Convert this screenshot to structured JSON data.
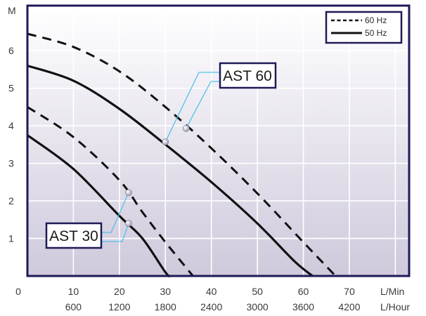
{
  "chart_data": {
    "type": "line",
    "ylabel": "M",
    "xlabel_primary": "L/Min",
    "xlabel_secondary": "L/Hour",
    "x_ticks_primary": [
      "0",
      "10",
      "20",
      "30",
      "40",
      "50",
      "60",
      "70"
    ],
    "x_ticks_secondary": [
      "600",
      "1200",
      "1800",
      "2400",
      "3000",
      "3600",
      "4200"
    ],
    "y_ticks": [
      "1",
      "2",
      "3",
      "4",
      "5",
      "6"
    ],
    "xlim": [
      0,
      83
    ],
    "ylim": [
      0,
      7.2
    ],
    "grid": true,
    "legend": {
      "placement": "top-right",
      "entries": [
        {
          "label": "60 Hz",
          "style": "dashed"
        },
        {
          "label": "50 Hz",
          "style": "solid"
        }
      ]
    },
    "series": [
      {
        "model": "AST 60",
        "freq": "60 Hz",
        "style": "dashed",
        "points": [
          [
            0,
            6.45
          ],
          [
            10,
            6.1
          ],
          [
            20,
            5.45
          ],
          [
            30,
            4.5
          ],
          [
            40,
            3.4
          ],
          [
            50,
            2.2
          ],
          [
            60,
            0.9
          ],
          [
            67,
            0
          ]
        ]
      },
      {
        "model": "AST 60",
        "freq": "50 Hz",
        "style": "solid",
        "points": [
          [
            0,
            5.6
          ],
          [
            10,
            5.2
          ],
          [
            20,
            4.45
          ],
          [
            30,
            3.5
          ],
          [
            40,
            2.5
          ],
          [
            50,
            1.4
          ],
          [
            58,
            0.4
          ],
          [
            62,
            0
          ]
        ]
      },
      {
        "model": "AST 30",
        "freq": "60 Hz",
        "style": "dashed",
        "points": [
          [
            0,
            4.5
          ],
          [
            10,
            3.7
          ],
          [
            20,
            2.55
          ],
          [
            25,
            1.7
          ],
          [
            30,
            0.9
          ],
          [
            36,
            0
          ]
        ]
      },
      {
        "model": "AST 30",
        "freq": "50 Hz",
        "style": "solid",
        "points": [
          [
            0,
            3.75
          ],
          [
            10,
            2.85
          ],
          [
            20,
            1.6
          ],
          [
            25,
            1.0
          ],
          [
            30,
            0.1
          ],
          [
            31,
            0
          ]
        ]
      }
    ],
    "callouts": [
      {
        "label": "AST 60",
        "markers": [
          [
            30,
            3.57
          ],
          [
            34.5,
            3.93
          ]
        ]
      },
      {
        "label": "AST 30",
        "markers": [
          [
            22,
            2.22
          ],
          [
            22,
            1.4
          ]
        ]
      }
    ],
    "colors": {
      "plot_bg_top": "#ffffff",
      "plot_bg_bottom": "#cfc9dc",
      "frame": "#1e1a57",
      "curve": "#111111",
      "callout_line": "#4fc4ea",
      "grid": "#ffffff",
      "marker": "#9a9ab4"
    }
  }
}
